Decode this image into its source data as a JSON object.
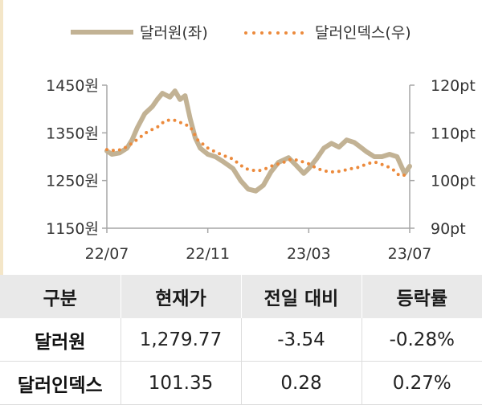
{
  "colors": {
    "krw_usd": "#c2b294",
    "dollar_index": "#ec8a3c",
    "axis": "#a6a6a6",
    "header_bg": "#e9e9e9",
    "accent_strip": "#f4e6c8"
  },
  "chart_data": {
    "type": "line",
    "legend": {
      "position": "top",
      "items": [
        "달러원(좌)",
        "달러인덱스(우)"
      ]
    },
    "x_tick_labels": [
      "22/07",
      "22/11",
      "23/03",
      "23/07"
    ],
    "x_range": [
      "22/07",
      "23/07"
    ],
    "y_left": {
      "ylim": [
        1150,
        1450
      ],
      "ticks": [
        1450,
        1350,
        1250,
        1150
      ],
      "tick_labels": [
        "1450원",
        "1350원",
        "1250원",
        "1150원"
      ]
    },
    "y_right": {
      "ylim": [
        90,
        120
      ],
      "ticks": [
        120,
        110,
        100,
        90
      ],
      "tick_labels": [
        "120pt",
        "110pt",
        "100pt",
        "90pt"
      ]
    },
    "grid": false,
    "series": [
      {
        "name": "달러원(좌)",
        "axis": "left",
        "style": "solid",
        "x": [
          0,
          0.2,
          0.5,
          0.8,
          1,
          1.2,
          1.5,
          1.8,
          2,
          2.2,
          2.5,
          2.7,
          2.9,
          3.1,
          3.3,
          3.5,
          3.7,
          4,
          4.3,
          4.6,
          5,
          5.3,
          5.6,
          5.9,
          6.2,
          6.5,
          6.8,
          7.2,
          7.5,
          7.8,
          8,
          8.3,
          8.6,
          8.9,
          9.2,
          9.5,
          9.8,
          10,
          10.3,
          10.6,
          10.9,
          11.2,
          11.5,
          11.8,
          12
        ],
        "y": [
          1312,
          1305,
          1308,
          1318,
          1335,
          1360,
          1390,
          1405,
          1420,
          1433,
          1425,
          1438,
          1420,
          1428,
          1380,
          1340,
          1318,
          1305,
          1300,
          1290,
          1275,
          1250,
          1232,
          1228,
          1240,
          1268,
          1288,
          1298,
          1282,
          1265,
          1275,
          1295,
          1318,
          1328,
          1320,
          1335,
          1330,
          1322,
          1310,
          1300,
          1300,
          1305,
          1300,
          1265,
          1280
        ]
      },
      {
        "name": "달러인덱스(우)",
        "axis": "right",
        "style": "dotted",
        "x": [
          0,
          0.3,
          0.6,
          1,
          1.3,
          1.6,
          2,
          2.3,
          2.6,
          3,
          3.3,
          3.6,
          4,
          4.3,
          4.6,
          5,
          5.3,
          5.6,
          6,
          6.3,
          6.6,
          7,
          7.3,
          7.6,
          8,
          8.3,
          8.6,
          9,
          9.3,
          9.6,
          10,
          10.3,
          10.6,
          11,
          11.3,
          11.6,
          12
        ],
        "y": [
          106.5,
          106.3,
          106.5,
          107.8,
          109.0,
          110.2,
          111.2,
          112.5,
          112.8,
          112.0,
          111.3,
          108.5,
          106.8,
          106.0,
          105.3,
          104.5,
          103.2,
          102.3,
          102.0,
          102.5,
          103.2,
          103.8,
          104.5,
          104.2,
          103.5,
          102.6,
          102.0,
          101.8,
          102.0,
          102.4,
          102.8,
          103.5,
          103.9,
          103.2,
          102.5,
          101.0,
          101.3
        ]
      }
    ]
  },
  "table": {
    "headers": [
      "구분",
      "현재가",
      "전일 대비",
      "등락률"
    ],
    "rows": [
      [
        "달러원",
        "1,279.77",
        "-3.54",
        "-0.28%"
      ],
      [
        "달러인덱스",
        "101.35",
        "0.28",
        "0.27%"
      ]
    ]
  }
}
